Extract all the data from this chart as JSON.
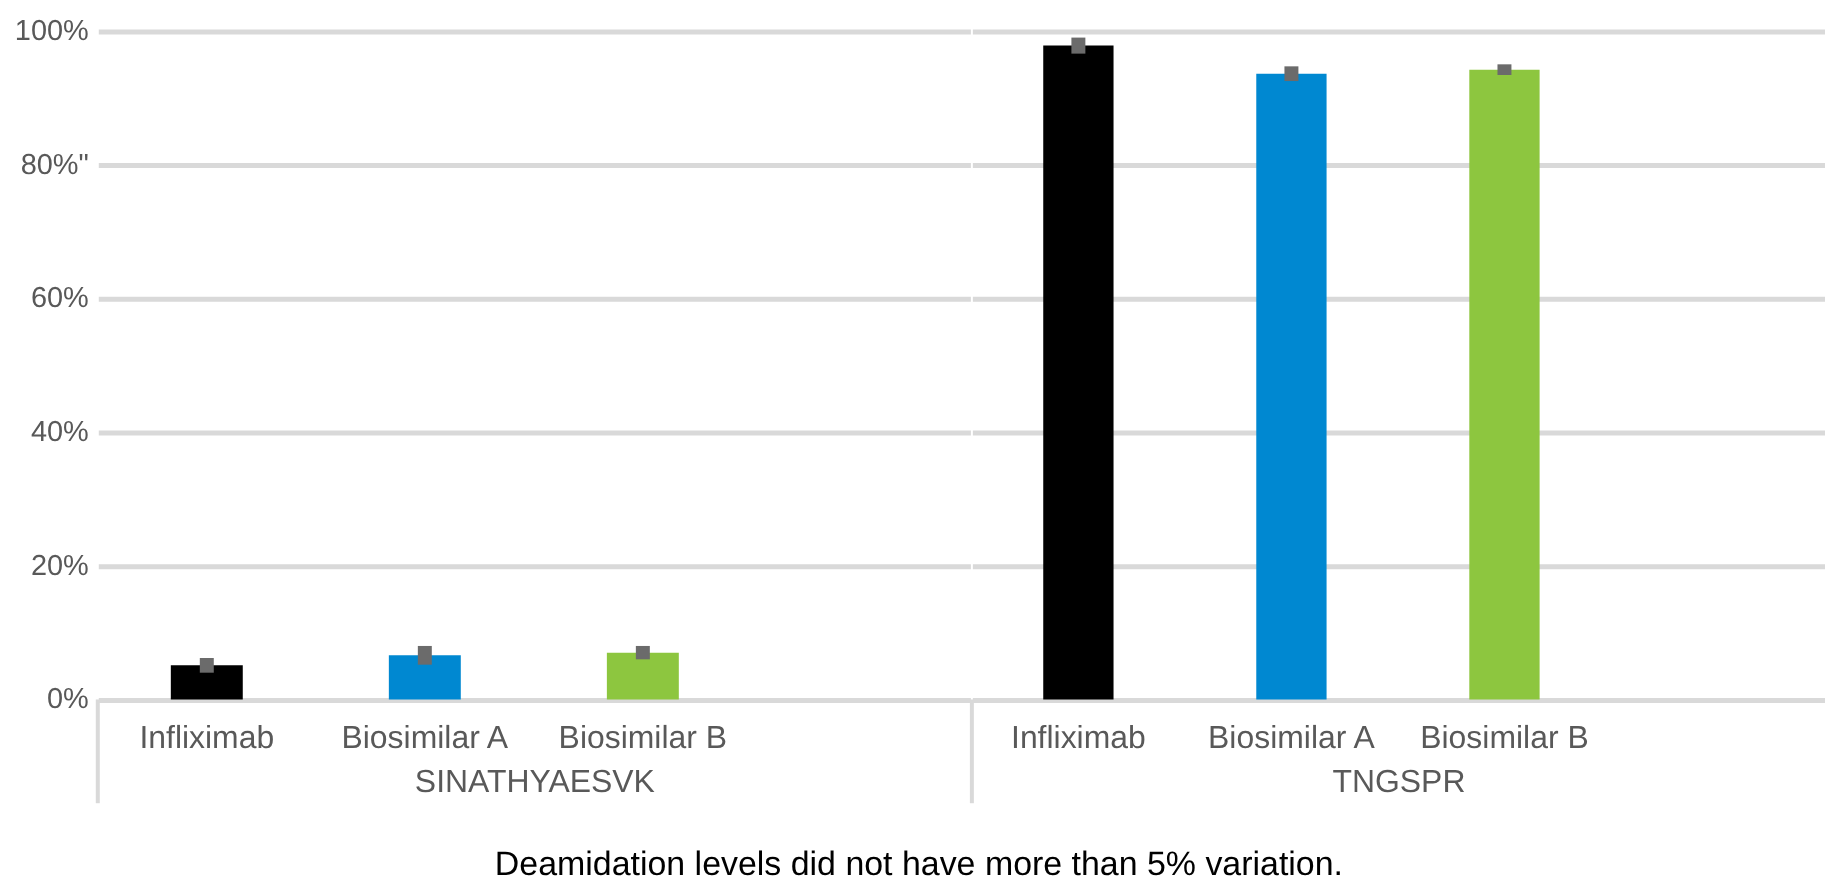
{
  "chart_data": [
    {
      "type": "bar",
      "categories": [
        "Infliximab",
        "Biosimilar A",
        "Biosimilar B",
        null
      ],
      "values": [
        5.1,
        6.6,
        7.0,
        null
      ],
      "colors": [
        "#000000",
        "#0088d1",
        "#8dc63f",
        null
      ],
      "errors": [
        1.1,
        1.4,
        1.0,
        null
      ],
      "xlabel": "SINATHYAESVK",
      "ylim": [
        0,
        100
      ],
      "yticks": [
        {
          "value": 0,
          "label": "0%"
        },
        {
          "value": 20,
          "label": "20%"
        },
        {
          "value": 40,
          "label": "40%"
        },
        {
          "value": 60,
          "label": "60%"
        },
        {
          "value": 80,
          "label": "80%\""
        },
        {
          "value": 100,
          "label": "100%"
        }
      ],
      "grid": "y",
      "annotations": [
        "Deamidation levels did not have more than 5% variation."
      ]
    },
    {
      "type": "bar",
      "categories": [
        "Infliximab",
        "Biosimilar A",
        "Biosimilar B",
        null
      ],
      "values": [
        97.8,
        93.6,
        94.2,
        null
      ],
      "colors": [
        "#000000",
        "#0088d1",
        "#8dc63f",
        null
      ],
      "errors": [
        1.2,
        1.1,
        0.8,
        null
      ],
      "xlabel": "TNGSPR",
      "ylim": [
        0,
        100
      ],
      "yticks": [
        {
          "value": 0,
          "label": null
        },
        {
          "value": 20,
          "label": null
        },
        {
          "value": 40,
          "label": null
        },
        {
          "value": 60,
          "label": null
        },
        {
          "value": 80,
          "label": null
        },
        {
          "value": 100,
          "label": null
        }
      ],
      "grid": "y",
      "tick_labels": "x"
    }
  ]
}
